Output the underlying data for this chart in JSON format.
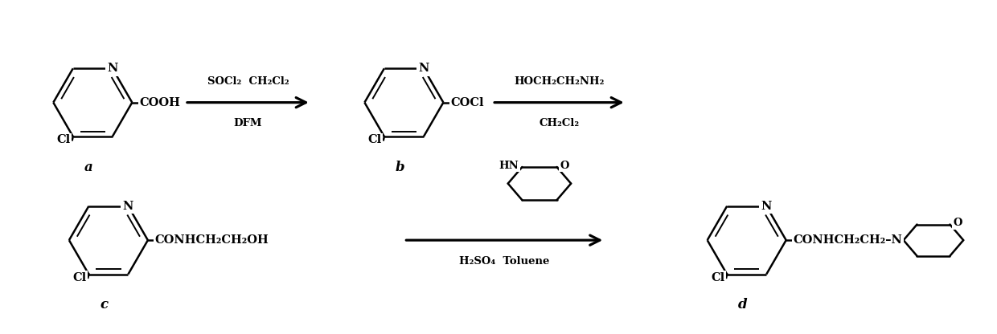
{
  "background": "#ffffff",
  "fig_w": 12.4,
  "fig_h": 4.16,
  "dpi": 100,
  "arrow1_top": "SOCl₂  CH₂Cl₂",
  "arrow1_bot": "DFM",
  "arrow2_top": "HOCH₂CH₂NH₂",
  "arrow2_bot": "CH₂Cl₂",
  "arrow3_bot": "H₂SO₄  Toluene",
  "label_a": "a",
  "label_b": "b",
  "label_c": "c",
  "label_d": "d",
  "sub_a": "COOH",
  "sub_b": "COCl",
  "sub_c": "CONHCH₂CH₂OH",
  "sub_d": "CONHCH₂CH₂–N"
}
